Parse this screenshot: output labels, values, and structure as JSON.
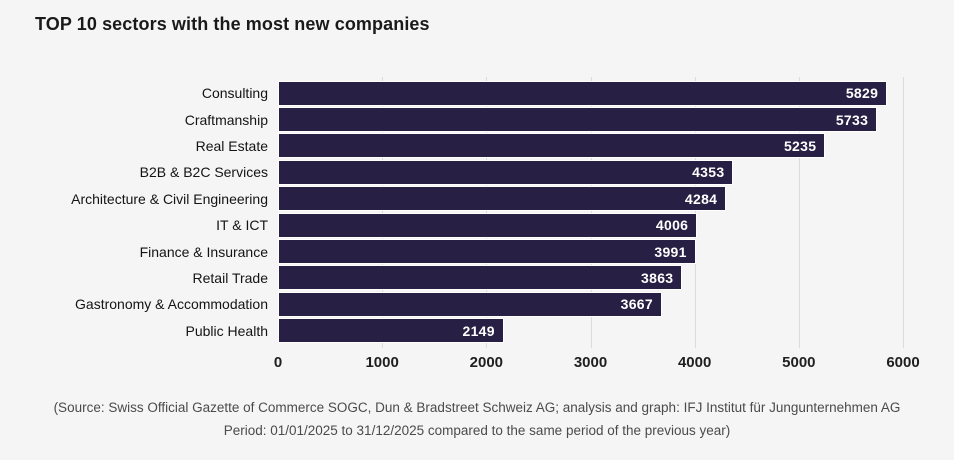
{
  "title": "TOP 10 sectors with the most new companies",
  "chart_data": {
    "type": "bar",
    "orientation": "horizontal",
    "title": "TOP 10 sectors with the most new companies",
    "categories": [
      "Consulting",
      "Craftmanship",
      "Real Estate",
      "B2B & B2C Services",
      "Architecture & Civil Engineering",
      "IT & ICT",
      "Finance & Insurance",
      "Retail Trade",
      "Gastronomy & Accommodation",
      "Public Health"
    ],
    "values": [
      5829,
      5733,
      5235,
      4353,
      4284,
      4006,
      3991,
      3863,
      3667,
      2149
    ],
    "xlabel": "",
    "ylabel": "",
    "xlim": [
      0,
      6000
    ],
    "x_ticks": [
      0,
      1000,
      2000,
      3000,
      4000,
      5000,
      6000
    ],
    "grid": true,
    "value_labels_shown": true,
    "colors": {
      "bar": "#272044",
      "value_label": "#ffffff",
      "gridline": "#dcdbdc",
      "background": "#f6f5f6"
    },
    "legend": null
  },
  "footer": {
    "line1": "(Source: Swiss Official Gazette of Commerce SOGC, Dun & Bradstreet Schweiz AG; analysis and graph: IFJ Institut für Jungunternehmen AG",
    "line2": "Period: 01/01/2025 to 31/12/2025 compared to the same period of the previous year)"
  }
}
